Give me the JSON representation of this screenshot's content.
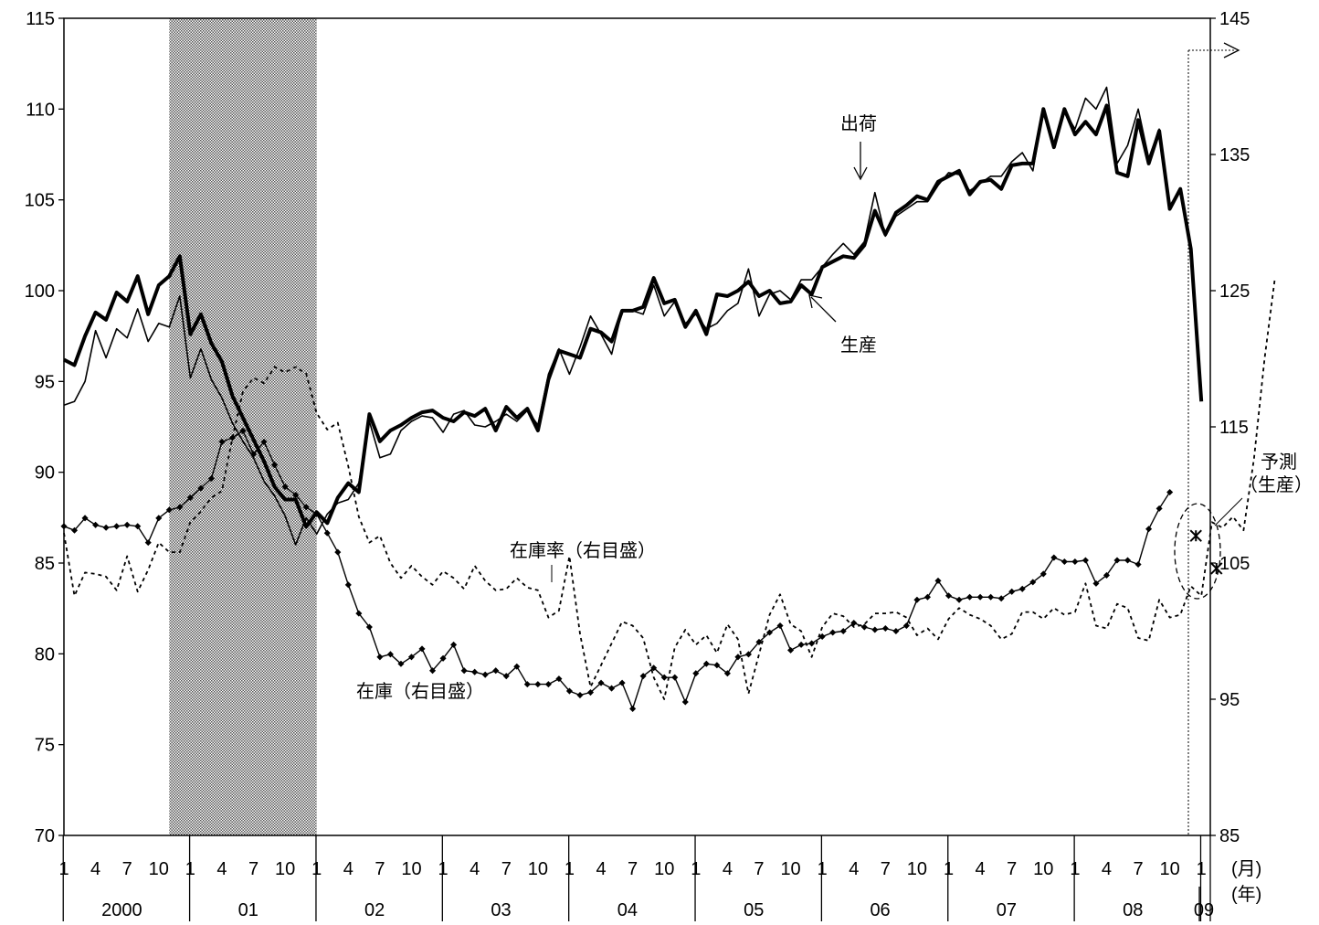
{
  "chart_data": {
    "type": "line",
    "left_axis": {
      "min": 70,
      "max": 115,
      "ticks": [
        70,
        75,
        80,
        85,
        90,
        95,
        100,
        105,
        110,
        115
      ]
    },
    "right_axis": {
      "min": 85,
      "max": 145,
      "ticks": [
        85,
        95,
        105,
        115,
        125,
        135,
        145
      ]
    },
    "x_month_ticks": [
      "1",
      "4",
      "7",
      "10"
    ],
    "x_month_unit": "(月)",
    "x_year_unit": "(年)",
    "years": [
      "2000",
      "01",
      "02",
      "03",
      "04",
      "05",
      "06",
      "07",
      "08",
      "09"
    ],
    "recession_shading": {
      "from": "2000-11",
      "to": "2002-01"
    },
    "labels": {
      "shipments": "出荷",
      "production": "生産",
      "inventory_ratio": "在庫率（右目盛）",
      "inventory": "在庫（右目盛）",
      "forecast_line1": "予測",
      "forecast_line2": "（生産）"
    },
    "series": [
      {
        "name": "生産",
        "axis": "left",
        "start": "2000-01",
        "values": [
          96.2,
          95.9,
          97.5,
          98.8,
          98.4,
          99.9,
          99.4,
          100.8,
          98.7,
          100.3,
          100.8,
          101.9,
          97.6,
          98.7,
          97.1,
          96.1,
          94.2,
          93.0,
          91.8,
          90.6,
          89.2,
          88.5,
          88.5,
          87.0,
          87.8,
          87.2,
          88.6,
          89.4,
          88.9,
          93.2,
          91.7,
          92.3,
          92.6,
          93.0,
          93.3,
          93.4,
          93.0,
          92.8,
          93.3,
          93.1,
          93.5,
          92.3,
          93.6,
          93.0,
          93.5,
          92.3,
          95.1,
          96.7,
          96.5,
          96.3,
          97.9,
          97.7,
          97.2,
          98.9,
          98.9,
          99.1,
          100.7,
          99.3,
          99.5,
          98.0,
          98.9,
          97.6,
          99.8,
          99.7,
          100.0,
          100.5,
          99.7,
          100.0,
          99.3,
          99.4,
          100.3,
          99.8,
          101.3,
          101.6,
          101.9,
          101.8,
          102.5,
          104.4,
          103.1,
          104.3,
          104.7,
          105.2,
          105.0,
          106.0,
          106.3,
          106.6,
          105.3,
          106.0,
          106.1,
          105.6,
          106.9,
          107.0,
          107.0,
          110.0,
          107.9,
          110.0,
          108.6,
          109.3,
          108.6,
          110.2,
          106.5,
          106.3,
          109.4,
          107.0,
          108.8,
          104.5,
          105.6,
          102.3,
          93.9
        ]
      },
      {
        "name": "出荷",
        "axis": "left",
        "start": "2000-01",
        "values": [
          93.7,
          93.9,
          95.0,
          97.8,
          96.3,
          97.9,
          97.4,
          99.0,
          97.2,
          98.2,
          98.0,
          99.7,
          95.2,
          96.8,
          95.1,
          94.1,
          92.7,
          91.7,
          90.8,
          89.5,
          88.7,
          87.6,
          86.0,
          87.5,
          86.6,
          87.7,
          88.3,
          88.5,
          89.4,
          92.8,
          90.8,
          91.0,
          92.3,
          92.8,
          93.1,
          93.0,
          92.2,
          93.2,
          93.4,
          92.6,
          92.5,
          92.8,
          93.2,
          92.8,
          93.4,
          92.6,
          95.4,
          96.8,
          95.4,
          96.9,
          98.6,
          97.6,
          96.5,
          98.9,
          98.9,
          98.7,
          100.3,
          98.6,
          99.4,
          98.2,
          98.7,
          97.9,
          98.2,
          98.9,
          99.3,
          101.2,
          98.6,
          99.8,
          100.0,
          99.5,
          100.6,
          100.6,
          101.3,
          102.0,
          102.6,
          102.0,
          102.7,
          105.4,
          103.0,
          104.1,
          104.5,
          104.9,
          104.9,
          105.8,
          106.5,
          106.4,
          105.5,
          105.9,
          106.3,
          106.3,
          107.1,
          107.6,
          106.6,
          110.0,
          108.0,
          109.9,
          108.9,
          110.6,
          110.0,
          111.2,
          107.0,
          108.0,
          110.0,
          107.3,
          108.9,
          104.7,
          105.5,
          102.4,
          94.3
        ]
      },
      {
        "name": "在庫（右目盛）",
        "axis": "right",
        "start": "2000-01",
        "values": [
          107.7,
          107.4,
          108.3,
          107.8,
          107.6,
          107.7,
          107.8,
          107.7,
          106.5,
          108.3,
          108.9,
          109.1,
          109.8,
          110.5,
          111.2,
          113.9,
          114.2,
          114.7,
          113.0,
          113.9,
          112.2,
          110.6,
          110.0,
          109.1,
          108.6,
          107.2,
          105.8,
          103.4,
          101.3,
          100.3,
          98.1,
          98.3,
          97.6,
          98.1,
          98.7,
          97.1,
          98.0,
          99.0,
          97.1,
          97.0,
          96.8,
          97.1,
          96.7,
          97.4,
          96.1,
          96.1,
          96.1,
          96.5,
          95.6,
          95.3,
          95.5,
          96.2,
          95.8,
          96.2,
          94.3,
          96.7,
          97.3,
          96.6,
          96.6,
          94.8,
          96.9,
          97.6,
          97.5,
          96.9,
          98.1,
          98.3,
          99.2,
          99.9,
          100.4,
          98.6,
          99.0,
          99.1,
          99.6,
          99.9,
          100.0,
          100.6,
          100.3,
          100.1,
          100.2,
          100.0,
          100.4,
          102.3,
          102.5,
          103.7,
          102.6,
          102.3,
          102.5,
          102.5,
          102.5,
          102.4,
          102.9,
          103.1,
          103.6,
          104.2,
          105.4,
          105.1,
          105.1,
          105.2,
          103.5,
          104.1,
          105.2,
          105.2,
          104.9,
          107.5,
          109.0,
          110.2
        ]
      },
      {
        "name": "在庫率（右目盛）",
        "axis": "right",
        "start": "2000-01",
        "values": [
          107.2,
          102.6,
          104.3,
          104.2,
          104.0,
          103.0,
          105.5,
          102.9,
          104.5,
          106.5,
          105.8,
          105.8,
          108.0,
          108.8,
          109.8,
          110.3,
          114.2,
          117.6,
          118.6,
          118.2,
          119.4,
          119.0,
          119.4,
          118.9,
          116.0,
          114.8,
          115.3,
          112.1,
          108.4,
          106.5,
          107.0,
          105.0,
          103.9,
          104.8,
          104.0,
          103.4,
          104.4,
          103.9,
          103.1,
          104.8,
          103.7,
          103.0,
          103.1,
          103.9,
          103.2,
          103.0,
          101.0,
          101.5,
          105.5,
          99.8,
          95.9,
          97.5,
          99.1,
          100.7,
          100.4,
          99.5,
          96.6,
          95.0,
          98.8,
          100.1,
          99.0,
          99.7,
          98.4,
          100.5,
          99.4,
          95.4,
          98.3,
          101.2,
          102.7,
          100.5,
          100.0,
          98.1,
          100.3,
          101.3,
          101.1,
          100.3,
          100.5,
          101.3,
          101.3,
          101.4,
          101.0,
          99.7,
          100.2,
          99.4,
          100.9,
          101.7,
          101.2,
          100.9,
          100.4,
          99.4,
          99.8,
          101.4,
          101.4,
          100.9,
          101.7,
          101.2,
          101.4,
          103.5,
          100.4,
          100.2,
          102.0,
          101.7,
          99.5,
          99.3,
          102.3,
          101.0,
          101.2,
          103.3,
          102.6,
          108.0,
          107.6,
          108.4,
          107.4,
          112.7,
          120.0,
          126.0
        ]
      },
      {
        "name": "予測（生産）",
        "axis": "left",
        "start": "2009-01",
        "values": [
          86.5,
          84.7
        ]
      }
    ]
  }
}
